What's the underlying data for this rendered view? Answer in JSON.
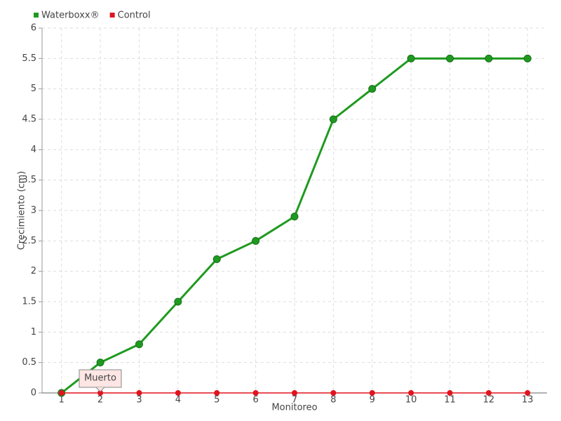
{
  "chart_data": {
    "type": "line",
    "x_label": "Monitoreo",
    "y_label": "Crecimiento (cm)",
    "categories": [
      "1",
      "2",
      "3",
      "4",
      "5",
      "6",
      "7",
      "8",
      "9",
      "10",
      "11",
      "12",
      "13"
    ],
    "series": [
      {
        "name": "Waterboxx®",
        "color": "#1f9a1f",
        "values": [
          0,
          0.5,
          0.8,
          1.5,
          2.2,
          2.5,
          2.9,
          4.5,
          5,
          5.5,
          5.5,
          5.5,
          5.5
        ]
      },
      {
        "name": "Control",
        "color": "#e0141e",
        "values": [
          0,
          0,
          0,
          0,
          0,
          0,
          0,
          0,
          0,
          0,
          0,
          0,
          0
        ]
      }
    ],
    "annotation": "Muerto",
    "ylim": [
      0,
      6
    ],
    "yticks": [
      0,
      0.5,
      1,
      1.5,
      2,
      2.5,
      3,
      3.5,
      4,
      4.5,
      5,
      5.5,
      6
    ],
    "grid": true,
    "legend": "top-left"
  }
}
